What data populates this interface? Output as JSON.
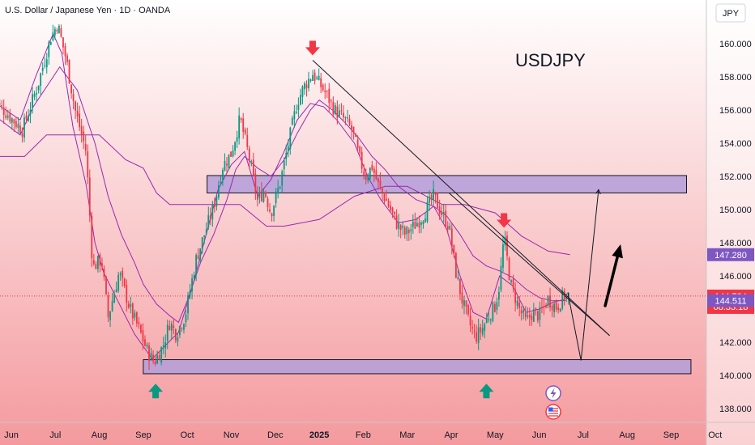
{
  "header": {
    "title": "U.S. Dollar / Japanese Yen · 1D · OANDA",
    "currency": "JPY"
  },
  "annotation": {
    "symbol_text": "USDJPY"
  },
  "colors": {
    "bg_top": "#ffffff",
    "bg_bottom": "#f49a9e",
    "up": "#089981",
    "down": "#f23645",
    "ichimoku": "#9c27b0",
    "zone": "#b39ddb",
    "arrow_red": "#f23645",
    "arrow_green": "#089981",
    "badge_purple": "#7e57c2",
    "badge_price": "#f23645"
  },
  "chart_data": {
    "type": "candlestick",
    "ylim": [
      137.5,
      162.0
    ],
    "y_ticks": [
      138.0,
      140.0,
      142.0,
      144.0,
      146.0,
      148.0,
      150.0,
      152.0,
      154.0,
      156.0,
      158.0,
      160.0
    ],
    "x_ticks": [
      {
        "label": "Jun",
        "t": 0
      },
      {
        "label": "Jul",
        "t": 1
      },
      {
        "label": "Aug",
        "t": 2
      },
      {
        "label": "Sep",
        "t": 3
      },
      {
        "label": "Oct",
        "t": 4
      },
      {
        "label": "Nov",
        "t": 5
      },
      {
        "label": "Dec",
        "t": 6
      },
      {
        "label": "2025",
        "t": 7
      },
      {
        "label": "Feb",
        "t": 8
      },
      {
        "label": "Mar",
        "t": 9
      },
      {
        "label": "Apr",
        "t": 10
      },
      {
        "label": "May",
        "t": 11
      },
      {
        "label": "Jun",
        "t": 12
      },
      {
        "label": "Jul",
        "t": 13
      },
      {
        "label": "Aug",
        "t": 14
      },
      {
        "label": "Sep",
        "t": 15
      },
      {
        "label": "Oct",
        "t": 16
      }
    ],
    "price_path": [
      [
        -0.45,
        156.8
      ],
      [
        0.0,
        155.5
      ],
      [
        0.25,
        154.8
      ],
      [
        0.6,
        157.5
      ],
      [
        0.9,
        160.4
      ],
      [
        1.05,
        161.2
      ],
      [
        1.25,
        159.0
      ],
      [
        1.45,
        156.0
      ],
      [
        1.7,
        153.5
      ],
      [
        1.85,
        146.5
      ],
      [
        2.05,
        147.0
      ],
      [
        2.2,
        143.5
      ],
      [
        2.45,
        146.2
      ],
      [
        2.7,
        144.0
      ],
      [
        2.9,
        142.8
      ],
      [
        3.1,
        141.4
      ],
      [
        3.25,
        140.8
      ],
      [
        3.45,
        141.8
      ],
      [
        3.6,
        143.2
      ],
      [
        3.75,
        142.5
      ],
      [
        3.95,
        143.6
      ],
      [
        4.2,
        147.0
      ],
      [
        4.4,
        148.6
      ],
      [
        4.6,
        150.2
      ],
      [
        4.8,
        152.6
      ],
      [
        5.0,
        153.4
      ],
      [
        5.2,
        155.5
      ],
      [
        5.4,
        153.2
      ],
      [
        5.6,
        150.5
      ],
      [
        5.75,
        151.2
      ],
      [
        5.9,
        149.8
      ],
      [
        6.1,
        151.5
      ],
      [
        6.3,
        154.0
      ],
      [
        6.5,
        156.5
      ],
      [
        6.65,
        157.4
      ],
      [
        6.85,
        158.2
      ],
      [
        7.0,
        157.6
      ],
      [
        7.15,
        157.0
      ],
      [
        7.35,
        156.0
      ],
      [
        7.55,
        155.5
      ],
      [
        7.75,
        154.8
      ],
      [
        7.9,
        153.2
      ],
      [
        8.05,
        152.0
      ],
      [
        8.2,
        152.6
      ],
      [
        8.35,
        151.4
      ],
      [
        8.55,
        150.4
      ],
      [
        8.75,
        149.2
      ],
      [
        8.95,
        148.5
      ],
      [
        9.15,
        149.0
      ],
      [
        9.35,
        149.6
      ],
      [
        9.6,
        150.8
      ],
      [
        9.8,
        149.7
      ],
      [
        9.95,
        149.0
      ],
      [
        10.1,
        146.3
      ],
      [
        10.25,
        144.5
      ],
      [
        10.4,
        143.2
      ],
      [
        10.55,
        142.3
      ],
      [
        10.7,
        142.8
      ],
      [
        10.85,
        143.6
      ],
      [
        11.0,
        144.2
      ],
      [
        11.1,
        145.5
      ],
      [
        11.2,
        148.4
      ],
      [
        11.35,
        145.5
      ],
      [
        11.55,
        144.0
      ],
      [
        11.7,
        143.2
      ],
      [
        11.85,
        143.8
      ],
      [
        12.0,
        143.6
      ],
      [
        12.2,
        144.6
      ],
      [
        12.4,
        144.1
      ],
      [
        12.55,
        144.8
      ],
      [
        12.7,
        144.784
      ]
    ],
    "ichimoku_lines": [
      {
        "points": [
          [
            -0.45,
            153.2
          ],
          [
            0.3,
            153.2
          ],
          [
            0.8,
            154.5
          ],
          [
            1.5,
            154.5
          ],
          [
            2.0,
            154.5
          ],
          [
            2.6,
            153.0
          ],
          [
            3.0,
            152.5
          ],
          [
            3.3,
            151.0
          ],
          [
            3.6,
            150.3
          ],
          [
            4.5,
            150.3
          ],
          [
            5.2,
            150.3
          ],
          [
            5.8,
            149.0
          ],
          [
            6.2,
            149.0
          ],
          [
            7.0,
            149.4
          ],
          [
            7.8,
            150.8
          ],
          [
            8.5,
            151.4
          ],
          [
            9.0,
            151.4
          ],
          [
            9.8,
            150.3
          ],
          [
            10.3,
            150.3
          ],
          [
            11.0,
            149.8
          ],
          [
            11.6,
            148.4
          ],
          [
            12.2,
            147.5
          ],
          [
            12.7,
            147.28
          ]
        ]
      },
      {
        "points": [
          [
            -0.45,
            155.8
          ],
          [
            0.2,
            154.5
          ],
          [
            0.5,
            156.2
          ],
          [
            0.9,
            157.8
          ],
          [
            1.1,
            158.6
          ],
          [
            1.5,
            157.2
          ],
          [
            1.9,
            154.0
          ],
          [
            2.2,
            150.8
          ],
          [
            2.5,
            148.5
          ],
          [
            2.8,
            146.8
          ],
          [
            3.0,
            145.5
          ],
          [
            3.3,
            144.3
          ],
          [
            3.6,
            143.6
          ],
          [
            3.8,
            143.2
          ],
          [
            4.0,
            144.5
          ],
          [
            4.3,
            146.8
          ],
          [
            4.6,
            148.5
          ],
          [
            4.9,
            150.6
          ],
          [
            5.1,
            152.4
          ],
          [
            5.3,
            153.2
          ],
          [
            5.6,
            152.5
          ],
          [
            5.9,
            152.0
          ],
          [
            6.2,
            153.0
          ],
          [
            6.5,
            154.6
          ],
          [
            6.8,
            156.0
          ],
          [
            7.0,
            156.6
          ],
          [
            7.3,
            156.0
          ],
          [
            7.6,
            155.2
          ],
          [
            7.9,
            154.3
          ],
          [
            8.2,
            153.2
          ],
          [
            8.5,
            152.4
          ],
          [
            8.8,
            151.4
          ],
          [
            9.2,
            150.6
          ],
          [
            9.6,
            150.2
          ],
          [
            9.9,
            149.6
          ],
          [
            10.2,
            148.5
          ],
          [
            10.5,
            147.2
          ],
          [
            10.8,
            146.6
          ],
          [
            11.1,
            146.3
          ],
          [
            11.4,
            145.9
          ],
          [
            11.7,
            145.2
          ],
          [
            12.0,
            144.7
          ],
          [
            12.3,
            144.5
          ],
          [
            12.6,
            144.511
          ]
        ]
      },
      {
        "points": [
          [
            -0.45,
            156.6
          ],
          [
            0.2,
            155.4
          ],
          [
            0.55,
            158.0
          ],
          [
            0.95,
            160.6
          ],
          [
            1.15,
            159.4
          ],
          [
            1.4,
            155.0
          ],
          [
            1.7,
            151.5
          ],
          [
            1.9,
            148.0
          ],
          [
            2.1,
            146.2
          ],
          [
            2.4,
            144.6
          ],
          [
            2.8,
            142.5
          ],
          [
            3.2,
            141.0
          ],
          [
            3.5,
            141.8
          ],
          [
            3.8,
            142.6
          ],
          [
            4.1,
            145.2
          ],
          [
            4.4,
            148.2
          ],
          [
            4.7,
            151.2
          ],
          [
            5.0,
            152.7
          ],
          [
            5.3,
            153.5
          ],
          [
            5.6,
            150.8
          ],
          [
            5.9,
            151.8
          ],
          [
            6.2,
            153.5
          ],
          [
            6.5,
            155.4
          ],
          [
            6.8,
            156.4
          ],
          [
            7.1,
            156.2
          ],
          [
            7.4,
            155.4
          ],
          [
            7.8,
            154.0
          ],
          [
            8.1,
            152.0
          ],
          [
            8.4,
            150.6
          ],
          [
            8.8,
            149.2
          ],
          [
            9.2,
            149.4
          ],
          [
            9.6,
            150.2
          ],
          [
            9.9,
            148.8
          ],
          [
            10.2,
            146.0
          ],
          [
            10.5,
            143.8
          ],
          [
            10.8,
            143.4
          ],
          [
            11.1,
            146.0
          ],
          [
            11.4,
            145.4
          ],
          [
            11.7,
            143.8
          ],
          [
            12.0,
            144.0
          ],
          [
            12.3,
            144.4
          ],
          [
            12.6,
            144.6
          ]
        ]
      }
    ],
    "zones": [
      {
        "t_start": 3.0,
        "t_end": 15.45,
        "y_low": 140.1,
        "y_high": 140.95
      },
      {
        "t_start": 4.45,
        "t_end": 15.35,
        "y_low": 151.0,
        "y_high": 152.05
      }
    ],
    "trendlines": [
      {
        "points": [
          [
            6.85,
            159.0
          ],
          [
            13.6,
            142.4
          ]
        ]
      },
      {
        "points": [
          [
            9.95,
            151.0
          ],
          [
            13.6,
            142.4
          ]
        ]
      }
    ],
    "projection": {
      "points": [
        [
          12.65,
          145.0
        ],
        [
          12.95,
          140.9
        ],
        [
          13.35,
          151.2
        ]
      ]
    },
    "projection_arrow": {
      "from": [
        13.5,
        144.2
      ],
      "to": [
        13.85,
        147.9
      ]
    },
    "down_arrows": [
      {
        "t": 6.85,
        "y": 159.3
      },
      {
        "t": 11.2,
        "y": 148.9
      }
    ],
    "up_arrows": [
      {
        "t": 3.28,
        "y": 139.5
      },
      {
        "t": 10.8,
        "y": 139.5
      }
    ],
    "price_labels": [
      {
        "value": 147.28,
        "text": "147.280",
        "kind": "ichimoku"
      },
      {
        "value": 144.784,
        "text": "144.784",
        "sub": "08:33:18",
        "kind": "price"
      },
      {
        "value": 144.511,
        "text": "144.511",
        "kind": "ichimoku"
      }
    ],
    "current_price": 144.784
  }
}
